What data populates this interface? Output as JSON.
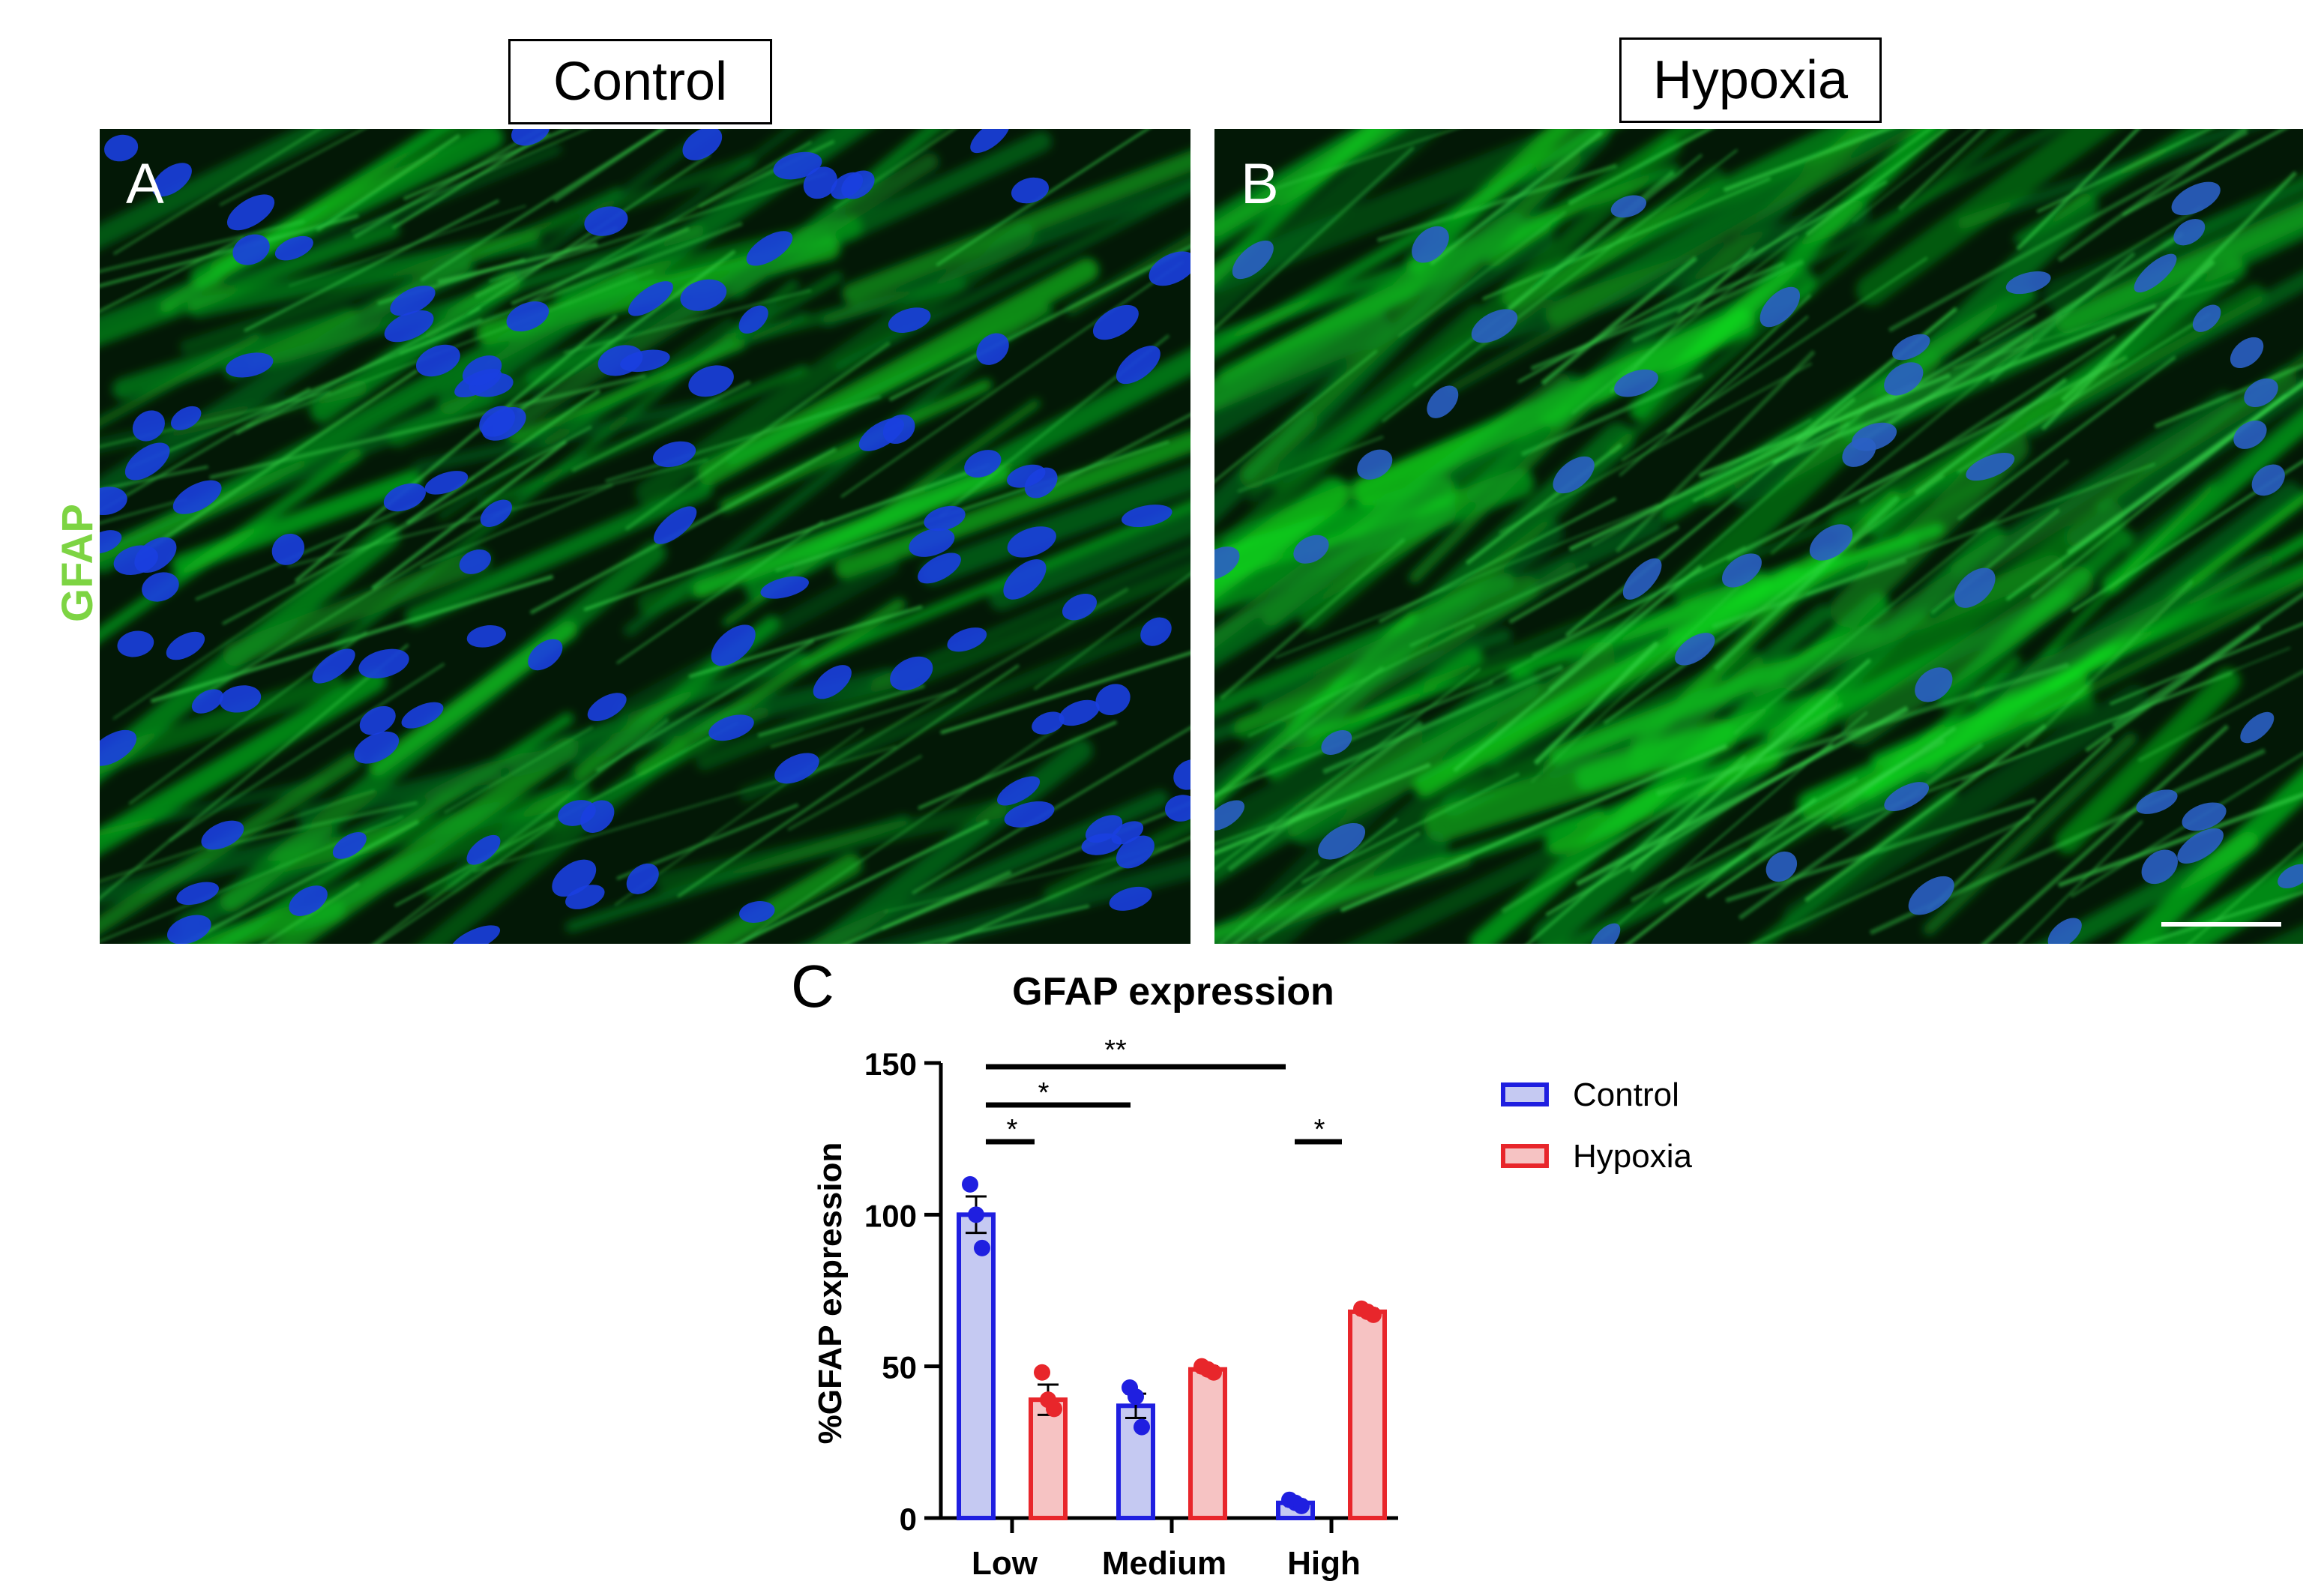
{
  "figure": {
    "panel_a": {
      "condition_label": "Control",
      "letter": "A"
    },
    "panel_b": {
      "condition_label": "Hypoxia",
      "letter": "B"
    },
    "row_label": "GFAP",
    "row_label_color": "#7dd443",
    "panel_c_letter": "C",
    "colors": {
      "nuclei": "#1f3fd6",
      "gfap": "#22c22a",
      "control": "#1f1fe0",
      "hypoxia": "#e8262b"
    }
  },
  "chart_data": {
    "type": "bar",
    "title": "GFAP expression",
    "ylabel": "%GFAP expression",
    "xlabel": "",
    "ylim": [
      0,
      150
    ],
    "yticks": [
      0,
      50,
      100,
      150
    ],
    "categories": [
      "Low",
      "Medium",
      "High"
    ],
    "series": [
      {
        "name": "Control",
        "values": [
          100,
          37,
          5
        ],
        "errors": [
          6,
          4,
          1
        ],
        "points": [
          [
            110,
            100,
            89
          ],
          [
            43,
            40,
            30
          ],
          [
            6,
            5,
            4
          ]
        ],
        "color": "#1f1fe0",
        "fill": "#c5c9f2"
      },
      {
        "name": "Hypoxia",
        "values": [
          39,
          49,
          68
        ],
        "errors": [
          5,
          1,
          1
        ],
        "points": [
          [
            48,
            39,
            36
          ],
          [
            50,
            49,
            48
          ],
          [
            69,
            68,
            67
          ]
        ],
        "color": "#e8262b",
        "fill": "#f6c3c3"
      }
    ],
    "significance": [
      {
        "label": "**",
        "from_group": 0,
        "to_group": 2,
        "y": 150
      },
      {
        "label": "*",
        "from_group": 0,
        "to_group": 1,
        "y": 138
      },
      {
        "label": "*",
        "within_group": 0,
        "y": 126
      },
      {
        "label": "*",
        "within_group": 2,
        "y": 126
      }
    ],
    "legend_position": "right",
    "grid": false
  }
}
